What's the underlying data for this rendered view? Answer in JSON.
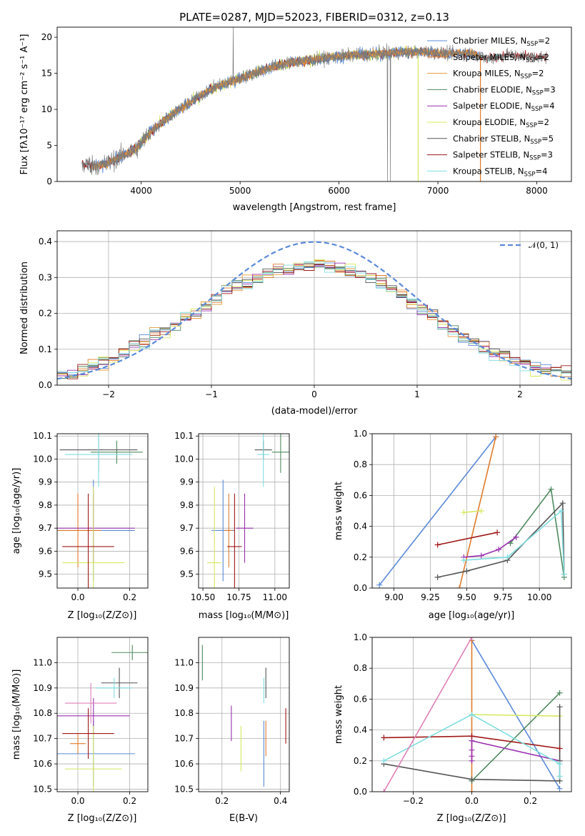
{
  "colors": {
    "Chabrier MILES": "#5b8ad8",
    "Salpeter MILES": "#e07a2a",
    "Kroupa MILES": "#e89a3a",
    "Chabrier ELODIE": "#4f8a5f",
    "Salpeter ELODIE": "#9a30b0",
    "Kroupa ELODIE": "#d8e860",
    "Chabrier STELIB": "#555555",
    "Salpeter STELIB": "#a01818",
    "Kroupa STELIB": "#80dde0",
    "extra_pink": "#e080b8"
  },
  "chart_data": [
    {
      "id": "spectrum",
      "type": "line",
      "title": "PLATE=0287, MJD=52023, FIBERID=0312, z=0.13",
      "xlabel": "wavelength [Angstrom, rest frame]",
      "ylabel": "Flux [fλ10⁻¹⁷ erg cm⁻² s⁻¹ A⁻¹]",
      "xlim": [
        3150,
        8350
      ],
      "ylim": [
        0,
        21.4
      ],
      "xticks": [
        4000,
        5000,
        6000,
        7000,
        8000
      ],
      "yticks": [
        0,
        5,
        10,
        15,
        20
      ],
      "legend_position": "top-right",
      "legend": [
        {
          "base": "Chabrier MILES, N",
          "sub": "SSP",
          "tail": "=2"
        },
        {
          "base": "Salpeter MILES, N",
          "sub": "SSP",
          "tail": "=2"
        },
        {
          "base": "Kroupa MILES, N",
          "sub": "SSP",
          "tail": "=2"
        },
        {
          "base": "Chabrier ELODIE, N",
          "sub": "SSP",
          "tail": "=3"
        },
        {
          "base": "Salpeter ELODIE, N",
          "sub": "SSP",
          "tail": "=4"
        },
        {
          "base": "Kroupa ELODIE, N",
          "sub": "SSP",
          "tail": "=2"
        },
        {
          "base": "Chabrier STELIB, N",
          "sub": "SSP",
          "tail": "=5"
        },
        {
          "base": "Salpeter STELIB, N",
          "sub": "SSP",
          "tail": "=3"
        },
        {
          "base": "Kroupa STELIB, N",
          "sub": "SSP",
          "tail": "=4"
        }
      ],
      "model_range": {
        "MILES": [
          3500,
          7430
        ],
        "ELODIE": [
          3900,
          6800
        ],
        "STELIB": [
          3400,
          8100
        ]
      },
      "continuum": {
        "x": [
          3400,
          3600,
          3800,
          3950,
          4100,
          4300,
          4500,
          4700,
          4900,
          5100,
          5300,
          5500,
          5700,
          5900,
          6100,
          6300,
          6500,
          6700,
          6900,
          7100,
          7300,
          7500,
          7700,
          7900,
          8100
        ],
        "y": [
          2.4,
          2.2,
          3.5,
          4.5,
          7.0,
          9.2,
          11.0,
          12.8,
          13.8,
          14.8,
          15.8,
          16.5,
          16.8,
          17.2,
          17.5,
          17.6,
          17.8,
          17.9,
          18.0,
          17.7,
          17.9,
          17.0,
          17.5,
          17.3,
          17.2
        ]
      }
    },
    {
      "id": "residuals",
      "type": "area",
      "xlabel": "(data-model)/error",
      "ylabel": "Normed distribution",
      "xlim": [
        -2.5,
        2.5
      ],
      "ylim": [
        0,
        0.43
      ],
      "xticks": [
        -2,
        -1,
        0,
        1,
        2
      ],
      "yticks": [
        0.0,
        0.1,
        0.2,
        0.3,
        0.4
      ],
      "legend": "𝒩(0, 1)",
      "legend_position": "top-right",
      "bins": 50,
      "envelope": [
        0.03,
        0.035,
        0.045,
        0.055,
        0.065,
        0.075,
        0.09,
        0.11,
        0.12,
        0.14,
        0.15,
        0.17,
        0.19,
        0.2,
        0.22,
        0.24,
        0.26,
        0.28,
        0.29,
        0.3,
        0.31,
        0.32,
        0.32,
        0.33,
        0.34,
        0.34,
        0.33,
        0.33,
        0.32,
        0.31,
        0.3,
        0.29,
        0.27,
        0.25,
        0.23,
        0.21,
        0.19,
        0.17,
        0.15,
        0.13,
        0.12,
        0.1,
        0.09,
        0.08,
        0.07,
        0.06,
        0.05,
        0.045,
        0.04,
        0.035
      ]
    },
    {
      "id": "age-vs-Z",
      "type": "scatter",
      "xlabel": "Z [log₁₀(Z/Z⊙)]",
      "ylabel": "age  [log₁₀(age/yr)]",
      "xlim": [
        -0.08,
        0.27
      ],
      "ylim": [
        9.44,
        10.11
      ],
      "xticks": [
        0.0,
        0.2
      ],
      "yticks": [
        9.5,
        9.6,
        9.7,
        9.8,
        9.9,
        10.0,
        10.1
      ],
      "points": [
        {
          "m": "Chabrier MILES",
          "x": 0.06,
          "y": 9.69,
          "xe": 0.16,
          "ye": 0.22
        },
        {
          "m": "Salpeter MILES",
          "x": 0.0,
          "y": 9.69,
          "xe": 0.09,
          "ye": 0.16
        },
        {
          "m": "Chabrier ELODIE",
          "x": 0.15,
          "y": 10.03,
          "xe": 0.1,
          "ye": 0.05
        },
        {
          "m": "Salpeter ELODIE",
          "x": 0.06,
          "y": 9.7,
          "xe": 0.16,
          "ye": 0.15
        },
        {
          "m": "Kroupa ELODIE",
          "x": 0.06,
          "y": 9.55,
          "xe": 0.12,
          "ye": 0.33
        },
        {
          "m": "Chabrier STELIB",
          "x": 0.08,
          "y": 10.04,
          "xe": 0.15,
          "ye": 0.1
        },
        {
          "m": "Salpeter STELIB",
          "x": 0.04,
          "y": 9.62,
          "xe": 0.1,
          "ye": 0.23
        },
        {
          "m": "Kroupa STELIB",
          "x": 0.08,
          "y": 10.02,
          "xe": 0.13,
          "ye": 0.14
        }
      ]
    },
    {
      "id": "age-vs-mass",
      "type": "scatter",
      "xlabel": "mass [log₁₀(M/M⊙)]",
      "xlim": [
        10.47,
        11.1
      ],
      "ylim": [
        9.44,
        10.11
      ],
      "xticks": [
        10.5,
        10.75,
        11.0
      ],
      "yticks": [
        9.5,
        9.6,
        9.7,
        9.8,
        9.9,
        10.0,
        10.1
      ],
      "points": [
        {
          "m": "Chabrier MILES",
          "x": 10.64,
          "y": 9.69,
          "xe": 0.08,
          "ye": 0.22
        },
        {
          "m": "Salpeter MILES",
          "x": 10.68,
          "y": 9.69,
          "xe": 0.03,
          "ye": 0.16
        },
        {
          "m": "Chabrier ELODIE",
          "x": 11.04,
          "y": 10.03,
          "xe": 0.06,
          "ye": 0.09
        },
        {
          "m": "Salpeter ELODIE",
          "x": 10.79,
          "y": 9.7,
          "xe": 0.06,
          "ye": 0.15
        },
        {
          "m": "Kroupa ELODIE",
          "x": 10.58,
          "y": 9.55,
          "xe": 0.05,
          "ye": 0.33
        },
        {
          "m": "Chabrier STELIB",
          "x": 10.92,
          "y": 10.04,
          "xe": 0.06,
          "ye": 0.04
        },
        {
          "m": "Salpeter STELIB",
          "x": 10.72,
          "y": 9.62,
          "xe": 0.05,
          "ye": 0.23
        },
        {
          "m": "Kroupa STELIB",
          "x": 10.92,
          "y": 10.02,
          "xe": 0.04,
          "ye": 0.14
        }
      ]
    },
    {
      "id": "weight-vs-age",
      "type": "line",
      "xlabel": "age  [log₁₀(age/yr)]",
      "ylabel": "mass weight",
      "xlim": [
        8.85,
        10.22
      ],
      "ylim": [
        0,
        1.0
      ],
      "xticks": [
        9.0,
        9.25,
        9.5,
        9.75,
        10.0
      ],
      "yticks": [
        0.0,
        0.2,
        0.4,
        0.6,
        0.8,
        1.0
      ],
      "series": [
        {
          "m": "Chabrier MILES",
          "x": [
            8.9,
            9.7
          ],
          "y": [
            0.02,
            0.98
          ]
        },
        {
          "m": "Salpeter MILES",
          "x": [
            9.45,
            9.7
          ],
          "y": [
            0.0,
            0.98
          ]
        },
        {
          "m": "Chabrier ELODIE",
          "x": [
            9.8,
            10.08,
            10.17
          ],
          "y": [
            0.29,
            0.64,
            0.07
          ]
        },
        {
          "m": "Salpeter ELODIE",
          "x": [
            9.48,
            9.6,
            9.72,
            9.84
          ],
          "y": [
            0.2,
            0.21,
            0.25,
            0.33
          ]
        },
        {
          "m": "Kroupa ELODIE",
          "x": [
            9.48,
            9.6
          ],
          "y": [
            0.49,
            0.5
          ]
        },
        {
          "m": "Chabrier STELIB",
          "x": [
            9.3,
            9.5,
            9.78,
            10.16,
            10.17
          ],
          "y": [
            0.07,
            0.11,
            0.18,
            0.55,
            0.09
          ]
        },
        {
          "m": "Salpeter STELIB",
          "x": [
            9.3,
            9.71
          ],
          "y": [
            0.28,
            0.36
          ]
        },
        {
          "m": "Kroupa STELIB",
          "x": [
            9.48,
            9.78,
            10.15,
            10.17
          ],
          "y": [
            0.18,
            0.2,
            0.5,
            0.09
          ]
        }
      ]
    },
    {
      "id": "mass-vs-Z",
      "type": "scatter",
      "xlabel": "Z [log₁₀(Z/Z⊙)]",
      "ylabel": "mass [log₁₀(M/M⊙)]",
      "xlim": [
        -0.08,
        0.27
      ],
      "ylim": [
        10.49,
        11.1
      ],
      "xticks": [
        0.0,
        0.2
      ],
      "yticks": [
        10.5,
        10.6,
        10.7,
        10.8,
        10.9,
        11.0
      ],
      "points": [
        {
          "m": "Chabrier MILES",
          "x": 0.06,
          "y": 10.64,
          "xe": 0.16,
          "ye": 0.13
        },
        {
          "m": "Salpeter MILES",
          "x": 0.0,
          "y": 10.68,
          "xe": 0.03,
          "ye": 0.04
        },
        {
          "m": "Chabrier ELODIE",
          "x": 0.21,
          "y": 11.04,
          "xe": 0.08,
          "ye": 0.03
        },
        {
          "m": "Salpeter ELODIE",
          "x": 0.06,
          "y": 10.79,
          "xe": 0.14,
          "ye": 0.07
        },
        {
          "m": "Kroupa ELODIE",
          "x": 0.06,
          "y": 10.58,
          "xe": 0.11,
          "ye": 0.17
        },
        {
          "m": "Chabrier STELIB",
          "x": 0.16,
          "y": 10.92,
          "xe": 0.07,
          "ye": 0.06
        },
        {
          "m": "Salpeter STELIB",
          "x": 0.04,
          "y": 10.72,
          "xe": 0.1,
          "ye": 0.1
        },
        {
          "m": "Kroupa STELIB",
          "x": 0.14,
          "y": 10.9,
          "xe": 0.07,
          "ye": 0.04
        },
        {
          "m": "extra_pink",
          "x": 0.05,
          "y": 10.84,
          "xe": 0.1,
          "ye": 0.08
        }
      ]
    },
    {
      "id": "mass-vs-EBV",
      "type": "scatter",
      "xlabel": "E(B-V)",
      "xlim": [
        0.12,
        0.43
      ],
      "ylim": [
        10.49,
        11.1
      ],
      "xticks": [
        0.2,
        0.4
      ],
      "yticks": [
        10.5,
        10.6,
        10.7,
        10.8,
        10.9,
        11.0
      ],
      "points": [
        {
          "m": "Chabrier MILES",
          "x": 0.343,
          "y": 10.64,
          "ye": 0.13
        },
        {
          "m": "Salpeter MILES",
          "x": 0.35,
          "y": 10.7,
          "ye": 0.07
        },
        {
          "m": "Chabrier ELODIE",
          "x": 0.133,
          "y": 11.0,
          "ye": 0.07
        },
        {
          "m": "Salpeter ELODIE",
          "x": 0.232,
          "y": 10.76,
          "ye": 0.07
        },
        {
          "m": "Kroupa ELODIE",
          "x": 0.265,
          "y": 10.66,
          "ye": 0.09
        },
        {
          "m": "Chabrier STELIB",
          "x": 0.35,
          "y": 10.92,
          "ye": 0.06
        },
        {
          "m": "Salpeter STELIB",
          "x": 0.418,
          "y": 10.75,
          "ye": 0.07
        },
        {
          "m": "Kroupa STELIB",
          "x": 0.343,
          "y": 10.89,
          "ye": 0.05
        }
      ]
    },
    {
      "id": "weight-vs-Z",
      "type": "line",
      "xlabel": "Z [log₁₀(Z/Z⊙)]",
      "ylabel": "mass weight",
      "xlim": [
        -0.34,
        0.34
      ],
      "ylim": [
        0,
        1.0
      ],
      "xticks": [
        -0.2,
        0.0,
        0.2
      ],
      "yticks": [
        0.0,
        0.2,
        0.4,
        0.6,
        0.8,
        1.0
      ],
      "series": [
        {
          "m": "Chabrier MILES",
          "x": [
            0.0,
            0.3
          ],
          "y": [
            0.98,
            0.02
          ]
        },
        {
          "m": "Salpeter MILES",
          "x": [
            0.0,
            0.0
          ],
          "y": [
            0.0,
            0.98
          ]
        },
        {
          "m": "Chabrier ELODIE",
          "x": [
            0.0,
            0.3
          ],
          "y": [
            0.07,
            0.64
          ]
        },
        {
          "m": "Salpeter ELODIE",
          "x": [
            0.0,
            0.0,
            0.0,
            0.0,
            0.3
          ],
          "y": [
            0.2,
            0.23,
            0.27,
            0.33,
            0.2
          ]
        },
        {
          "m": "Kroupa ELODIE",
          "x": [
            0.0,
            0.3
          ],
          "y": [
            0.5,
            0.49
          ]
        },
        {
          "m": "Chabrier STELIB",
          "x": [
            -0.3,
            0.0,
            0.3,
            0.3,
            0.3
          ],
          "y": [
            0.18,
            0.08,
            0.07,
            0.2,
            0.55
          ]
        },
        {
          "m": "Salpeter STELIB",
          "x": [
            -0.3,
            0.0,
            0.3
          ],
          "y": [
            0.35,
            0.36,
            0.28
          ]
        },
        {
          "m": "Kroupa STELIB",
          "x": [
            -0.3,
            0.0,
            0.3,
            0.3
          ],
          "y": [
            0.2,
            0.5,
            0.18,
            0.1
          ]
        },
        {
          "m": "extra_pink",
          "x": [
            -0.3,
            0.0
          ],
          "y": [
            0.0,
            1.0
          ]
        }
      ]
    }
  ]
}
